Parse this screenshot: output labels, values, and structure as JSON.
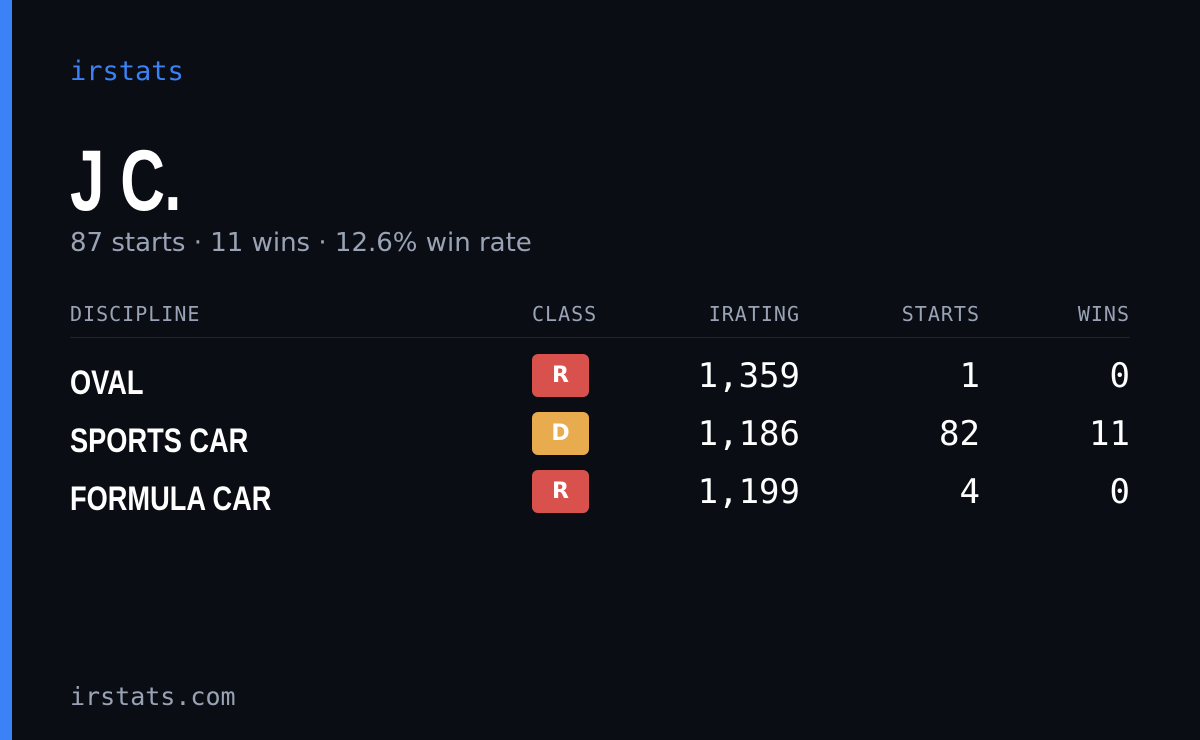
{
  "brand": "irstats",
  "profile": {
    "name": "J C.",
    "summary": "87 starts · 11 wins · 12.6% win rate"
  },
  "table": {
    "columns": [
      "DISCIPLINE",
      "CLASS",
      "IRATING",
      "STARTS",
      "WINS"
    ],
    "rows": [
      {
        "discipline": "OVAL",
        "class": "R",
        "class_color": "#d9514c",
        "irating": "1,359",
        "starts": "1",
        "wins": "0"
      },
      {
        "discipline": "SPORTS CAR",
        "class": "D",
        "class_color": "#e8ab4e",
        "irating": "1,186",
        "starts": "82",
        "wins": "11"
      },
      {
        "discipline": "FORMULA CAR",
        "class": "R",
        "class_color": "#d9514c",
        "irating": "1,199",
        "starts": "4",
        "wins": "0"
      }
    ]
  },
  "footer": "irstats.com"
}
